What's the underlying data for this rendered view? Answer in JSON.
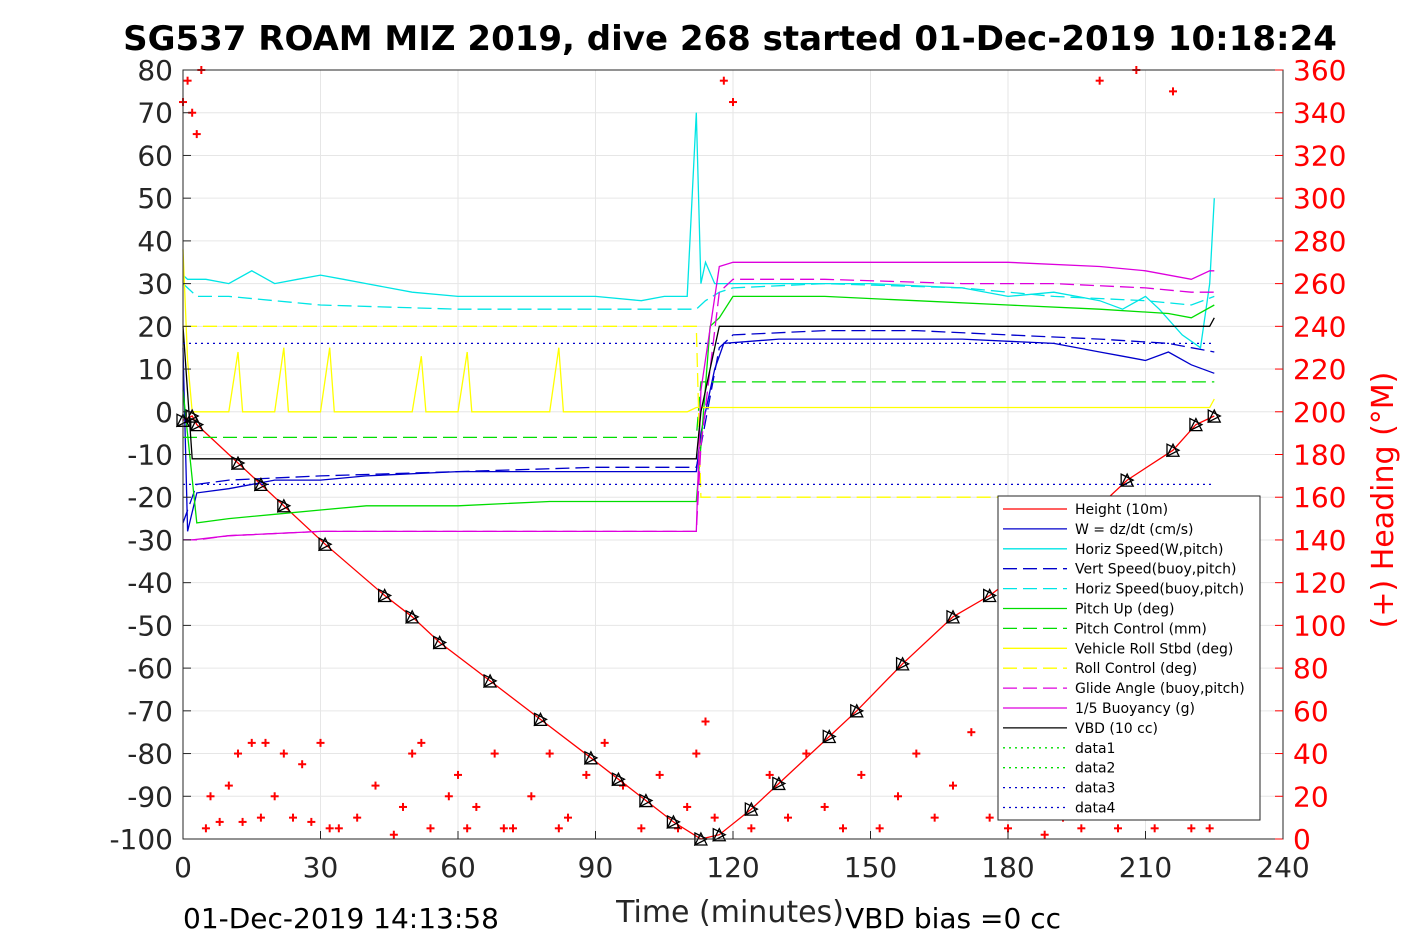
{
  "chart_data": {
    "type": "line",
    "title": "SG537 ROAM MIZ 2019, dive 268 started 01-Dec-2019 10:18:24",
    "xlabel": "Time (minutes)",
    "ylabel": "",
    "y2label": "(+) Heading (°M)",
    "xlim": [
      0,
      240
    ],
    "ylim": [
      -100,
      80
    ],
    "y2lim": [
      0,
      360
    ],
    "x_ticks": [
      0,
      30,
      60,
      90,
      120,
      150,
      180,
      210,
      240
    ],
    "y_ticks": [
      80,
      70,
      60,
      50,
      40,
      30,
      20,
      10,
      0,
      -10,
      -20,
      -30,
      -40,
      -50,
      -60,
      -70,
      -80,
      -90,
      -100
    ],
    "y2_ticks": [
      360,
      340,
      320,
      300,
      280,
      260,
      240,
      220,
      200,
      180,
      160,
      140,
      120,
      100,
      80,
      60,
      40,
      20,
      0
    ],
    "grid": true,
    "legend_position": "bottom-right",
    "footer_left": "01-Dec-2019 14:13:58",
    "footer_right": "VBD bias =0 cc",
    "series": [
      {
        "name": "Height (10m)",
        "color": "#ff0000",
        "style": "solid",
        "x": [
          0,
          2,
          3,
          12,
          17,
          22,
          31,
          44,
          50,
          56,
          67,
          78,
          89,
          95,
          101,
          107,
          113,
          117,
          124,
          130,
          141,
          147,
          157,
          168,
          176,
          186,
          192,
          198,
          206,
          216,
          221,
          225
        ],
        "y": [
          -2,
          -1,
          -3,
          -12,
          -17,
          -22,
          -31,
          -43,
          -48,
          -54,
          -63,
          -72,
          -81,
          -86,
          -91,
          -96,
          -100,
          -99,
          -93,
          -87,
          -76,
          -70,
          -59,
          -48,
          -43,
          -35,
          -29,
          -24,
          -16,
          -9,
          -3,
          -1
        ]
      },
      {
        "name": "W = dz/dt (cm/s)",
        "color": "#0000cc",
        "style": "solid",
        "x": [
          0,
          1,
          3,
          10,
          20,
          30,
          40,
          60,
          80,
          100,
          112,
          113,
          116,
          118,
          130,
          150,
          170,
          190,
          200,
          205,
          210,
          215,
          220,
          225
        ],
        "y": [
          15,
          -28,
          -19,
          -18,
          -16,
          -16,
          -15,
          -14,
          -14,
          -14,
          -14,
          -5,
          10,
          16,
          17,
          17,
          17,
          16,
          14,
          13,
          12,
          14,
          11,
          9
        ]
      },
      {
        "name": "Horiz Speed(W,pitch)",
        "color": "#00e5e5",
        "style": "solid",
        "x": [
          0,
          1,
          5,
          10,
          15,
          20,
          25,
          30,
          35,
          40,
          50,
          60,
          70,
          80,
          90,
          100,
          105,
          110,
          112,
          113,
          114,
          116,
          120,
          130,
          150,
          170,
          180,
          190,
          195,
          200,
          205,
          210,
          213,
          218,
          222,
          224,
          225
        ],
        "y": [
          32,
          31,
          31,
          30,
          33,
          30,
          31,
          32,
          31,
          30,
          28,
          27,
          27,
          27,
          27,
          26,
          27,
          27,
          70,
          30,
          35,
          30,
          30,
          30,
          30,
          29,
          27,
          28,
          27,
          26,
          24,
          27,
          24,
          18,
          15,
          30,
          50
        ]
      },
      {
        "name": "Vert Speed(buoy,pitch)",
        "color": "#0000cc",
        "style": "dashed",
        "x": [
          0,
          3,
          10,
          30,
          60,
          90,
          112,
          113,
          117,
          120,
          140,
          160,
          180,
          200,
          215,
          220,
          225
        ],
        "y": [
          -26,
          -17,
          -16,
          -15,
          -14,
          -13,
          -13,
          -8,
          15,
          18,
          19,
          19,
          18,
          17,
          16,
          15,
          14
        ]
      },
      {
        "name": "Horiz Speed(buoy,pitch)",
        "color": "#00e5e5",
        "style": "dashed",
        "x": [
          0,
          3,
          10,
          30,
          60,
          90,
          112,
          114,
          117,
          120,
          140,
          170,
          190,
          210,
          220,
          225
        ],
        "y": [
          30,
          27,
          27,
          25,
          24,
          24,
          24,
          26,
          28,
          29,
          30,
          29,
          27,
          26,
          25,
          27
        ]
      },
      {
        "name": "Pitch Up (deg)",
        "color": "#00dd00",
        "style": "solid",
        "x": [
          0,
          3,
          10,
          20,
          30,
          40,
          60,
          80,
          100,
          112,
          113,
          115,
          117,
          120,
          140,
          160,
          180,
          200,
          215,
          220,
          225
        ],
        "y": [
          5,
          -26,
          -25,
          -24,
          -23,
          -22,
          -22,
          -21,
          -21,
          -21,
          -8,
          20,
          22,
          27,
          27,
          26,
          25,
          24,
          23,
          22,
          25
        ]
      },
      {
        "name": "Pitch Control (mm)",
        "color": "#00dd00",
        "style": "dashed",
        "x": [
          0,
          4,
          112,
          113,
          118,
          225
        ],
        "y": [
          -6,
          -6,
          -6,
          7,
          7,
          7
        ]
      },
      {
        "name": "Vehicle Roll Stbd (deg)",
        "color": "#ffff00",
        "style": "solid",
        "x": [
          0,
          1,
          2,
          3,
          4,
          10,
          12,
          13,
          15,
          20,
          22,
          23,
          25,
          30,
          32,
          33,
          35,
          40,
          45,
          50,
          52,
          53,
          55,
          60,
          62,
          63,
          65,
          70,
          75,
          80,
          82,
          83,
          85,
          90,
          95,
          100,
          110,
          112,
          114,
          120,
          130,
          140,
          150,
          160,
          170,
          180,
          190,
          200,
          210,
          220,
          224,
          225
        ],
        "y": [
          38,
          12,
          0,
          0,
          0,
          0,
          14,
          0,
          0,
          0,
          15,
          0,
          0,
          0,
          15,
          0,
          0,
          0,
          0,
          0,
          13,
          0,
          0,
          0,
          14,
          0,
          0,
          0,
          0,
          0,
          15,
          0,
          0,
          0,
          0,
          0,
          0,
          1,
          1,
          1,
          1,
          1,
          1,
          1,
          1,
          1,
          1,
          1,
          1,
          1,
          1,
          3
        ]
      },
      {
        "name": "Roll Control (deg)",
        "color": "#ffff00",
        "style": "dashed",
        "x": [
          0,
          4,
          112,
          113,
          118,
          225
        ],
        "y": [
          20,
          20,
          20,
          -20,
          -20,
          -20
        ]
      },
      {
        "name": "Glide Angle (buoy,pitch)",
        "color": "#dd00dd",
        "style": "dashed",
        "x": [
          0,
          3,
          10,
          30,
          60,
          90,
          112,
          113,
          117,
          120,
          140,
          170,
          190,
          210,
          220,
          225
        ],
        "y": [
          -30,
          -30,
          -29,
          -28,
          -28,
          -28,
          -28,
          -8,
          28,
          31,
          31,
          30,
          30,
          29,
          28,
          28
        ]
      },
      {
        "name": "1/5 Buoyancy (g)",
        "color": "#dd00dd",
        "style": "solid",
        "x": [
          0,
          2,
          10,
          30,
          60,
          90,
          112,
          113,
          117,
          120,
          150,
          180,
          200,
          210,
          220,
          224,
          225
        ],
        "y": [
          -30,
          -30,
          -29,
          -28,
          -28,
          -28,
          -28,
          5,
          34,
          35,
          35,
          35,
          34,
          33,
          31,
          33,
          33
        ]
      },
      {
        "name": "VBD (10 cc)",
        "color": "#000000",
        "style": "solid",
        "x": [
          0,
          2,
          112,
          113,
          117,
          120,
          224,
          225
        ],
        "y": [
          20,
          -11,
          -11,
          0,
          20,
          20,
          20,
          22
        ]
      },
      {
        "name": "data1",
        "color": "#00dd00",
        "style": "dotted",
        "x": [],
        "y": []
      },
      {
        "name": "data2",
        "color": "#00dd00",
        "style": "dotted",
        "x": [],
        "y": []
      },
      {
        "name": "data3",
        "color": "#0000cc",
        "style": "dotted",
        "x": [
          0,
          225
        ],
        "y": [
          16,
          16
        ]
      },
      {
        "name": "data4",
        "color": "#0000cc",
        "style": "dotted",
        "x": [
          0,
          225
        ],
        "y": [
          -17,
          -17
        ]
      }
    ],
    "heading_series": {
      "axis": "right",
      "color": "#ff0000",
      "marker": "+",
      "x": [
        0,
        1,
        2,
        3,
        4,
        5,
        6,
        8,
        10,
        12,
        13,
        15,
        17,
        18,
        20,
        22,
        24,
        26,
        28,
        30,
        32,
        34,
        38,
        42,
        46,
        48,
        50,
        52,
        54,
        58,
        60,
        62,
        64,
        68,
        70,
        72,
        76,
        80,
        82,
        84,
        88,
        92,
        96,
        100,
        104,
        108,
        110,
        112,
        114,
        116,
        118,
        120,
        124,
        128,
        132,
        136,
        140,
        144,
        148,
        152,
        156,
        160,
        164,
        168,
        172,
        176,
        180,
        184,
        188,
        192,
        196,
        200,
        204,
        208,
        212,
        216,
        220,
        224
      ],
      "y": [
        345,
        355,
        340,
        330,
        360,
        5,
        20,
        8,
        25,
        40,
        8,
        45,
        10,
        45,
        20,
        40,
        10,
        35,
        8,
        45,
        5,
        5,
        10,
        25,
        2,
        15,
        40,
        45,
        5,
        20,
        30,
        5,
        15,
        40,
        5,
        5,
        20,
        40,
        5,
        10,
        30,
        45,
        25,
        5,
        30,
        5,
        15,
        40,
        55,
        10,
        355,
        345,
        5,
        30,
        10,
        40,
        15,
        5,
        30,
        5,
        20,
        40,
        10,
        25,
        50,
        10,
        5,
        25,
        2,
        10,
        5,
        355,
        5,
        360,
        5,
        350,
        5,
        5
      ]
    }
  }
}
